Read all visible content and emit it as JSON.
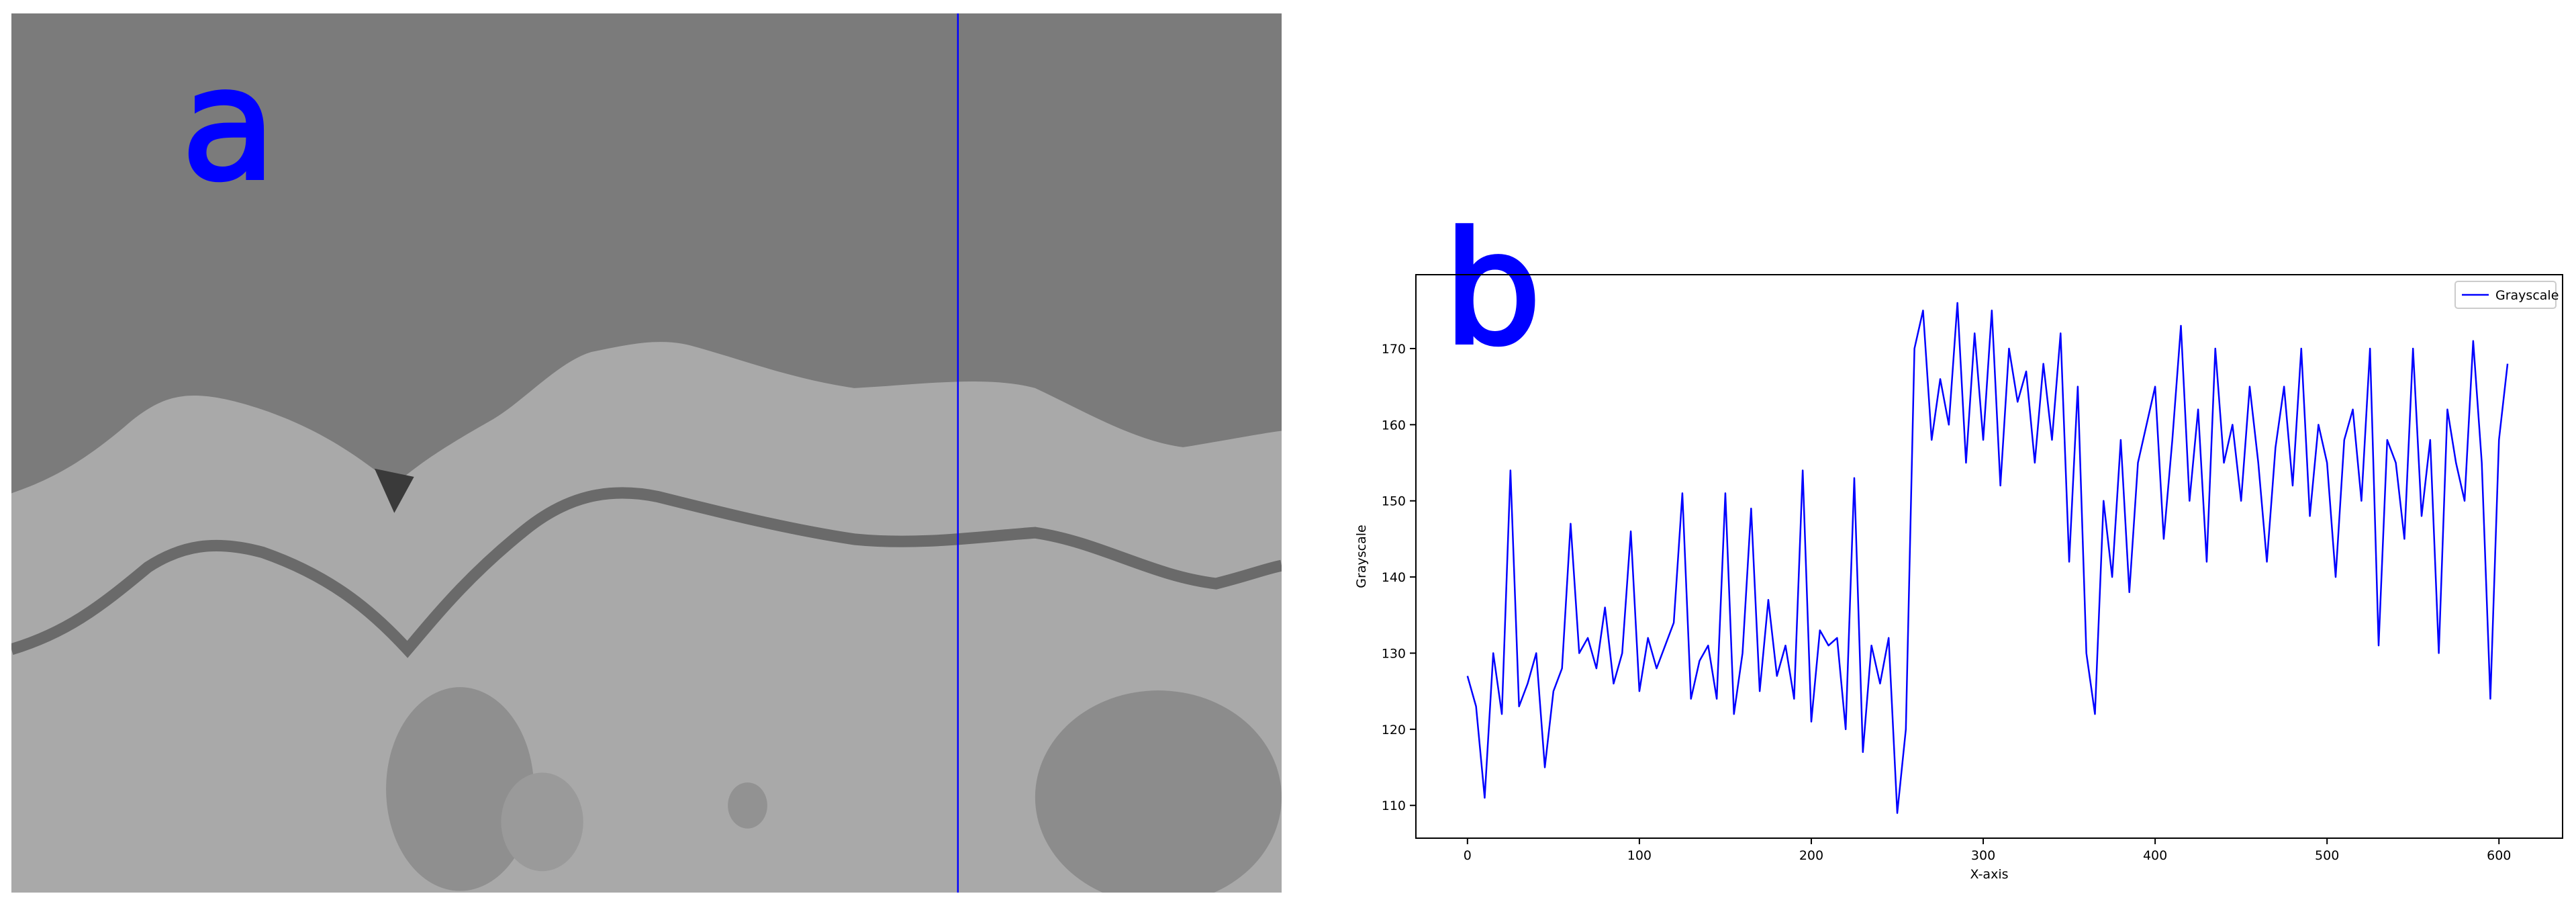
{
  "panel_labels": [
    "a",
    "b"
  ],
  "chart_data": {
    "type": "line",
    "xlabel": "X-axis",
    "ylabel": "Grayscale",
    "x": [
      0,
      5,
      10,
      15,
      20,
      25,
      30,
      35,
      40,
      45,
      50,
      55,
      60,
      65,
      70,
      75,
      80,
      85,
      90,
      95,
      100,
      105,
      110,
      115,
      120,
      125,
      130,
      135,
      140,
      145,
      150,
      155,
      160,
      165,
      170,
      175,
      180,
      185,
      190,
      195,
      200,
      205,
      210,
      215,
      220,
      225,
      230,
      235,
      240,
      245,
      250,
      255,
      260,
      265,
      270,
      275,
      280,
      285,
      290,
      295,
      300,
      305,
      310,
      315,
      320,
      325,
      330,
      335,
      340,
      345,
      350,
      355,
      360,
      365,
      370,
      375,
      380,
      385,
      390,
      395,
      400,
      405,
      410,
      415,
      420,
      425,
      430,
      435,
      440,
      445,
      450,
      455,
      460,
      465,
      470,
      475,
      480,
      485,
      490,
      495,
      500,
      505,
      510,
      515,
      520,
      525,
      530,
      535,
      540,
      545,
      550,
      555,
      560,
      565,
      570,
      575,
      580,
      585,
      590,
      595,
      600,
      605
    ],
    "series": [
      {
        "name": "Grayscale",
        "color": "#0000ff",
        "values": [
          127,
          123,
          111,
          130,
          122,
          154,
          123,
          126,
          130,
          115,
          125,
          128,
          147,
          130,
          132,
          128,
          136,
          126,
          130,
          146,
          125,
          132,
          128,
          131,
          134,
          151,
          124,
          129,
          131,
          124,
          151,
          122,
          130,
          149,
          125,
          137,
          127,
          131,
          124,
          154,
          121,
          133,
          131,
          132,
          120,
          153,
          117,
          131,
          126,
          132,
          109,
          120,
          170,
          175,
          158,
          166,
          160,
          176,
          155,
          172,
          158,
          175,
          152,
          170,
          163,
          167,
          155,
          168,
          158,
          172,
          142,
          165,
          130,
          122,
          150,
          140,
          158,
          138,
          155,
          160,
          165,
          145,
          158,
          173,
          150,
          162,
          142,
          170,
          155,
          160,
          150,
          165,
          155,
          142,
          157,
          165,
          152,
          170,
          148,
          160,
          155,
          140,
          158,
          162,
          150,
          170,
          131,
          158,
          155,
          145,
          170,
          148,
          158,
          130,
          162,
          155,
          150,
          171,
          155,
          124,
          158,
          168
        ]
      }
    ],
    "xlim": [
      -30,
      637
    ],
    "ylim": [
      105.7,
      179.7
    ],
    "xticks": [
      0,
      100,
      200,
      300,
      400,
      500,
      600
    ],
    "yticks": [
      110,
      120,
      130,
      140,
      150,
      160,
      170
    ],
    "legend": "upper right"
  }
}
